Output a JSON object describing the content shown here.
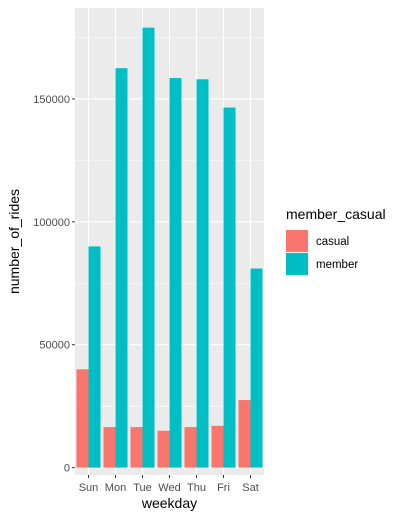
{
  "chart_data": {
    "type": "bar",
    "xlabel": "weekday",
    "ylabel": "number_of_rides",
    "categories": [
      "Sun",
      "Mon",
      "Tue",
      "Wed",
      "Thu",
      "Fri",
      "Sat"
    ],
    "series": [
      {
        "name": "casual",
        "color": "#F8766D",
        "values": [
          40000,
          16500,
          16500,
          15000,
          16500,
          17000,
          27500
        ]
      },
      {
        "name": "member",
        "color": "#00BFC4",
        "values": [
          90000,
          162500,
          179000,
          158500,
          158000,
          146500,
          81000
        ]
      }
    ],
    "ylim": [
      -3000,
      187000
    ],
    "yticks": [
      0,
      50000,
      100000,
      150000
    ],
    "ytick_labels": [
      "0",
      "50000",
      "100000",
      "150000"
    ],
    "legend": {
      "title": "member_casual",
      "placement": "right"
    },
    "grid": true,
    "panel_background": "#EBEBEB"
  }
}
